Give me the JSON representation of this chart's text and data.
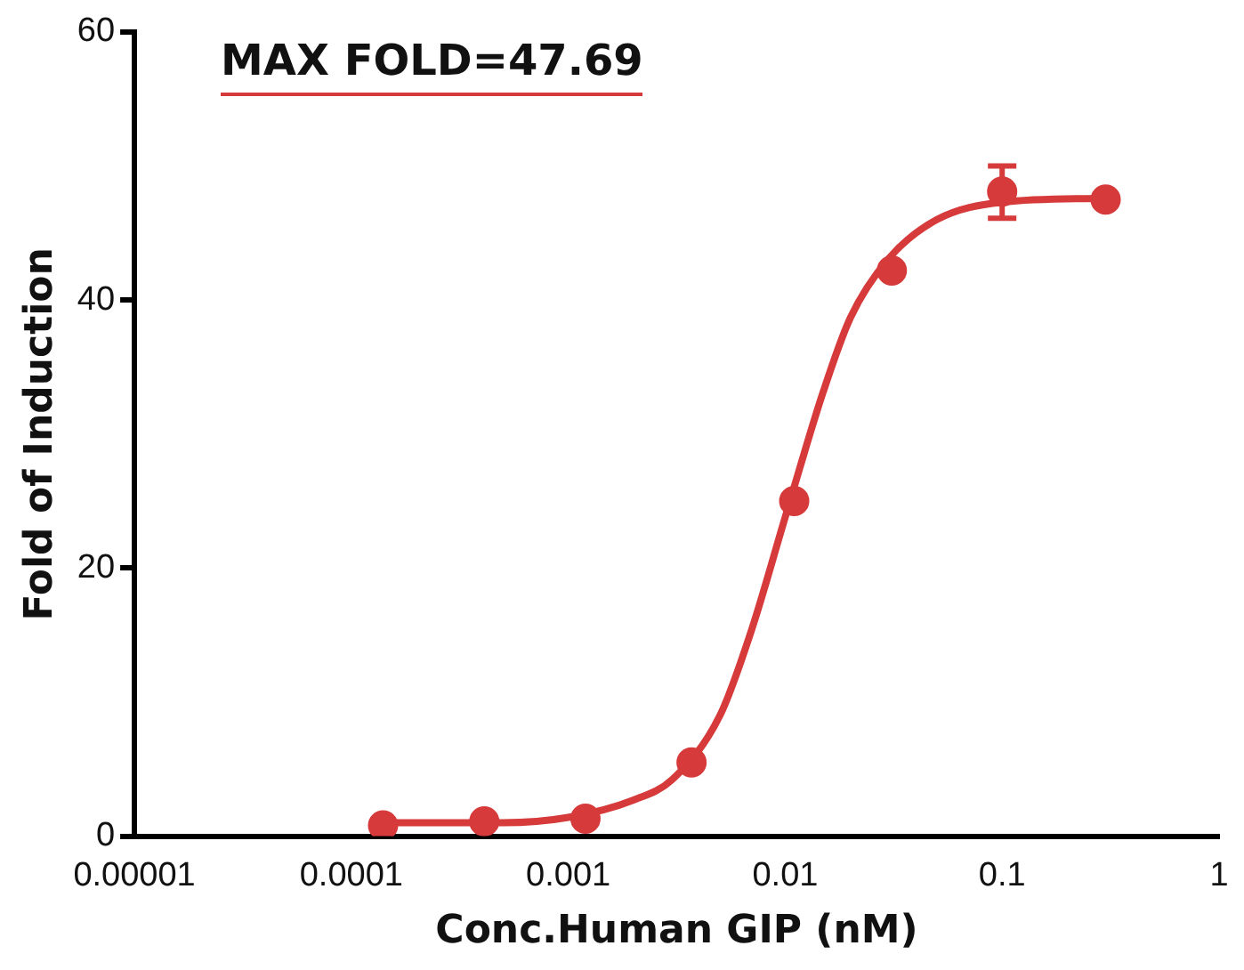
{
  "chart_data": {
    "type": "scatter",
    "xlabel": "Conc.Human GIP (nM)",
    "ylabel": "Fold of Induction",
    "log": "x",
    "xlim": [
      1e-05,
      1
    ],
    "xticks": [
      {
        "value": 1e-05,
        "label": "0.00001"
      },
      0.0001,
      0.001,
      0.01,
      0.1,
      1
    ],
    "ylim": [
      0,
      60
    ],
    "yticks": [
      0,
      20,
      40,
      60
    ],
    "grid": false,
    "legend": false,
    "annotations": [
      "MAX FOLD=47.69"
    ],
    "series": [
      {
        "color": "#d63a3a",
        "marker": "circle",
        "x": [
          0.00014,
          0.00041,
          0.0012,
          0.0037,
          0.011,
          0.031,
          0.1,
          0.3
        ],
        "values": [
          0.8,
          1.1,
          1.3,
          5.5,
          25,
          42.2,
          48.1,
          47.5
        ],
        "errors": [
          null,
          null,
          null,
          null,
          null,
          null,
          [
            46.1,
            50
          ],
          null
        ]
      },
      {
        "type": "line",
        "color": "#d63a3a",
        "marker": "none",
        "x": [
          0.00014,
          0.0005,
          0.001,
          0.002,
          0.003,
          0.005,
          0.007,
          0.01,
          0.015,
          0.02,
          0.03,
          0.05,
          0.1,
          0.3
        ],
        "values": [
          1.0,
          1.0,
          1.4,
          2.7,
          4.2,
          9.0,
          15.4,
          23.8,
          33.2,
          38.7,
          43.1,
          46.0,
          47.3,
          47.6
        ]
      }
    ]
  }
}
